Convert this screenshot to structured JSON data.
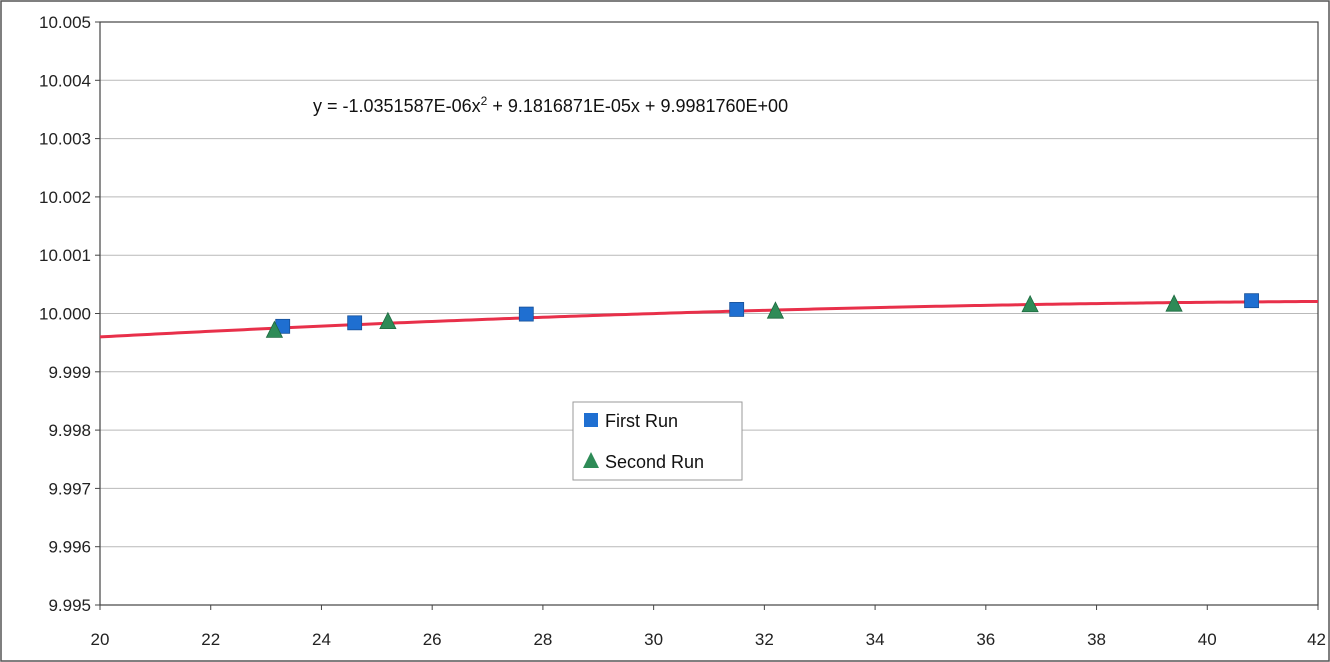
{
  "chart_data": {
    "type": "scatter",
    "title": "",
    "xlabel": "",
    "ylabel": "",
    "xlim": [
      20,
      42
    ],
    "ylim": [
      9.995,
      10.005
    ],
    "x_ticks": [
      "20",
      "22",
      "24",
      "26",
      "28",
      "30",
      "32",
      "34",
      "36",
      "38",
      "40",
      "42"
    ],
    "y_ticks": [
      "10.005",
      "10.004",
      "10.003",
      "10.002",
      "10.001",
      "10.000",
      "9.999",
      "9.998",
      "9.997",
      "9.996",
      "9.995"
    ],
    "grid": "horizontal",
    "legend_position": "center",
    "annotation": {
      "prefix": "y = -1.0351587E-06x",
      "superscript": "2",
      "suffix": " + 9.1816871E-05x + 9.9981760E+00"
    },
    "trendline": {
      "type": "polynomial",
      "coefficients": [
        -1.0351587e-06,
        9.1816871e-05,
        9.998176
      ],
      "color": "#e8304a"
    },
    "series": [
      {
        "name": "First Run",
        "marker": "square",
        "color": "#1f6fd1",
        "points": [
          {
            "x": 23.3,
            "y": 9.99978
          },
          {
            "x": 24.6,
            "y": 9.99984
          },
          {
            "x": 27.7,
            "y": 9.99999
          },
          {
            "x": 31.5,
            "y": 10.00007
          },
          {
            "x": 40.8,
            "y": 10.00022
          }
        ]
      },
      {
        "name": "Second Run",
        "marker": "triangle",
        "color": "#2e8b57",
        "points": [
          {
            "x": 23.15,
            "y": 9.99971
          },
          {
            "x": 25.2,
            "y": 9.99986
          },
          {
            "x": 32.2,
            "y": 10.00004
          },
          {
            "x": 36.8,
            "y": 10.00015
          },
          {
            "x": 39.4,
            "y": 10.00016
          }
        ]
      }
    ]
  }
}
